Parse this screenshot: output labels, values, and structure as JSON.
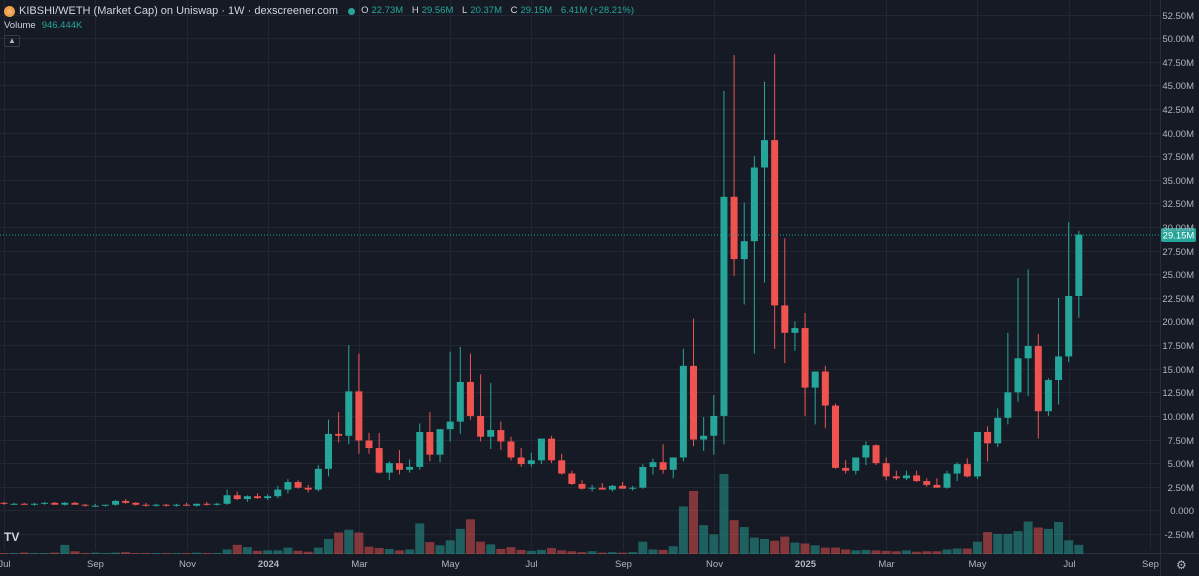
{
  "header": {
    "title": "KIBSHI/WETH (Market Cap) on Uniswap · 1W · dexscreener.com",
    "ohlc": [
      {
        "k": "O",
        "v": "22.73M"
      },
      {
        "k": "H",
        "v": "29.56M"
      },
      {
        "k": "L",
        "v": "20.37M"
      },
      {
        "k": "C",
        "v": "29.15M"
      },
      {
        "k": "",
        "v": "6.41M (+28.21%)"
      }
    ],
    "volume_label": "Volume",
    "volume_value": "946.444K",
    "collapse_icon": "chevron-up-icon"
  },
  "colors": {
    "background": "#161a25",
    "up": "#26a69a",
    "down": "#ef5350",
    "grid": "#232733",
    "text": "#b2b5be"
  },
  "chart_data": {
    "type": "candlestick",
    "interval": "1W",
    "current_price_label": "29.15M",
    "current_price": 29.15,
    "y_unit": "M",
    "ylim": [
      -4,
      53
    ],
    "y_ticks": [
      52.5,
      50,
      47.5,
      45,
      42.5,
      40,
      37.5,
      35,
      32.5,
      30,
      27.5,
      25,
      22.5,
      20,
      17.5,
      15,
      12.5,
      10,
      7.5,
      5,
      2.5,
      0,
      -2.5
    ],
    "y_tick_labels": [
      "52.50M",
      "50.00M",
      "47.50M",
      "45.00M",
      "42.50M",
      "40.00M",
      "37.50M",
      "35.00M",
      "32.50M",
      "30.00M",
      "27.50M",
      "25.00M",
      "22.50M",
      "20.00M",
      "17.50M",
      "15.00M",
      "12.50M",
      "10.00M",
      "7.50M",
      "5.00M",
      "2.50M",
      "0.000",
      "-2.50M"
    ],
    "x_tick_labels": [
      {
        "label": "Jul",
        "week": 0
      },
      {
        "label": "Sep",
        "week": 9
      },
      {
        "label": "Nov",
        "week": 18
      },
      {
        "label": "2024",
        "week": 26
      },
      {
        "label": "Mar",
        "week": 35
      },
      {
        "label": "May",
        "week": 44
      },
      {
        "label": "Jul",
        "week": 52
      },
      {
        "label": "Sep",
        "week": 61
      },
      {
        "label": "Nov",
        "week": 70
      },
      {
        "label": "2025",
        "week": 79
      },
      {
        "label": "Mar",
        "week": 87
      },
      {
        "label": "May",
        "week": 96
      },
      {
        "label": "Jul",
        "week": 105
      },
      {
        "label": "Sep",
        "week": 113
      }
    ],
    "candles": [
      [
        0.8,
        0.9,
        0.6,
        0.7,
        0.2
      ],
      [
        0.7,
        0.8,
        0.6,
        0.7,
        0.2
      ],
      [
        0.7,
        0.8,
        0.6,
        0.6,
        0.3
      ],
      [
        0.6,
        0.8,
        0.5,
        0.7,
        0.2
      ],
      [
        0.7,
        0.9,
        0.6,
        0.8,
        0.2
      ],
      [
        0.8,
        0.9,
        0.6,
        0.6,
        0.3
      ],
      [
        0.6,
        0.9,
        0.5,
        0.8,
        2.0
      ],
      [
        0.8,
        0.9,
        0.6,
        0.6,
        0.6
      ],
      [
        0.6,
        0.7,
        0.4,
        0.5,
        0.2
      ],
      [
        0.5,
        0.7,
        0.4,
        0.5,
        0.3
      ],
      [
        0.5,
        0.6,
        0.4,
        0.6,
        0.2
      ],
      [
        0.6,
        1.1,
        0.5,
        1.0,
        0.3
      ],
      [
        1.0,
        1.2,
        0.7,
        0.8,
        0.4
      ],
      [
        0.8,
        0.9,
        0.5,
        0.6,
        0.2
      ],
      [
        0.6,
        0.8,
        0.4,
        0.5,
        0.2
      ],
      [
        0.5,
        0.7,
        0.4,
        0.6,
        0.2
      ],
      [
        0.6,
        0.7,
        0.4,
        0.5,
        0.2
      ],
      [
        0.5,
        0.7,
        0.4,
        0.6,
        0.2
      ],
      [
        0.6,
        0.8,
        0.5,
        0.5,
        0.2
      ],
      [
        0.5,
        0.7,
        0.4,
        0.7,
        0.3
      ],
      [
        0.7,
        0.9,
        0.5,
        0.6,
        0.2
      ],
      [
        0.6,
        0.8,
        0.5,
        0.7,
        0.2
      ],
      [
        0.7,
        2.2,
        0.6,
        1.6,
        1.0
      ],
      [
        1.6,
        2.0,
        1.1,
        1.2,
        2.0
      ],
      [
        1.2,
        1.6,
        0.9,
        1.5,
        1.5
      ],
      [
        1.5,
        1.8,
        1.2,
        1.3,
        0.7
      ],
      [
        1.3,
        1.7,
        1.1,
        1.5,
        0.8
      ],
      [
        1.5,
        2.6,
        1.3,
        2.2,
        0.8
      ],
      [
        2.2,
        3.3,
        1.8,
        3.0,
        1.4
      ],
      [
        3.0,
        3.2,
        2.3,
        2.4,
        0.7
      ],
      [
        2.4,
        2.7,
        1.9,
        2.2,
        0.5
      ],
      [
        2.2,
        4.8,
        2.0,
        4.4,
        1.4
      ],
      [
        4.4,
        9.6,
        3.6,
        8.1,
        3.3
      ],
      [
        8.1,
        10.4,
        7.2,
        7.9,
        4.7
      ],
      [
        7.9,
        17.5,
        7.0,
        12.6,
        5.3
      ],
      [
        12.6,
        16.6,
        6.0,
        7.4,
        4.7
      ],
      [
        7.4,
        8.2,
        6.0,
        6.6,
        1.6
      ],
      [
        6.6,
        8.2,
        3.9,
        4.0,
        1.3
      ],
      [
        4.0,
        5.2,
        3.2,
        5.0,
        1.1
      ],
      [
        5.0,
        6.4,
        3.8,
        4.3,
        0.8
      ],
      [
        4.3,
        5.4,
        4.0,
        4.6,
        1.0
      ],
      [
        4.6,
        9.2,
        4.3,
        8.3,
        6.7
      ],
      [
        8.3,
        10.4,
        5.2,
        5.9,
        2.6
      ],
      [
        5.9,
        8.3,
        5.1,
        8.6,
        1.9
      ],
      [
        8.6,
        16.8,
        7.3,
        9.4,
        3.0
      ],
      [
        9.4,
        17.3,
        8.1,
        13.6,
        5.5
      ],
      [
        13.6,
        16.6,
        9.6,
        10.0,
        7.6
      ],
      [
        10.0,
        14.4,
        7.3,
        7.8,
        2.7
      ],
      [
        7.8,
        13.5,
        6.5,
        8.5,
        2.1
      ],
      [
        8.5,
        9.4,
        6.4,
        7.3,
        1.1
      ],
      [
        7.3,
        7.8,
        5.3,
        5.6,
        1.5
      ],
      [
        5.6,
        6.6,
        4.6,
        4.9,
        0.9
      ],
      [
        4.9,
        6.1,
        4.6,
        5.3,
        0.7
      ],
      [
        5.3,
        7.5,
        4.9,
        7.6,
        0.9
      ],
      [
        7.6,
        7.9,
        5.0,
        5.3,
        1.3
      ],
      [
        5.3,
        6.0,
        3.8,
        3.9,
        0.8
      ],
      [
        3.9,
        4.2,
        2.7,
        2.8,
        0.6
      ],
      [
        2.8,
        3.2,
        2.2,
        2.3,
        0.4
      ],
      [
        2.3,
        2.7,
        2.0,
        2.4,
        0.6
      ],
      [
        2.4,
        2.9,
        2.2,
        2.2,
        0.3
      ],
      [
        2.2,
        2.7,
        2.0,
        2.6,
        0.4
      ],
      [
        2.6,
        3.0,
        2.3,
        2.3,
        0.3
      ],
      [
        2.3,
        2.6,
        2.1,
        2.4,
        0.4
      ],
      [
        2.4,
        4.9,
        2.3,
        4.6,
        2.7
      ],
      [
        4.6,
        5.5,
        3.8,
        5.1,
        1.0
      ],
      [
        5.1,
        7.0,
        3.9,
        4.3,
        0.9
      ],
      [
        4.3,
        5.6,
        3.4,
        5.6,
        1.7
      ],
      [
        5.6,
        17.1,
        5.2,
        15.3,
        10.4
      ],
      [
        15.3,
        20.3,
        6.8,
        7.5,
        13.8
      ],
      [
        7.5,
        9.9,
        6.3,
        7.9,
        6.3
      ],
      [
        7.9,
        12.2,
        5.9,
        10.0,
        4.3
      ],
      [
        10.0,
        44.4,
        7.0,
        33.2,
        17.5
      ],
      [
        33.2,
        48.2,
        24.8,
        26.6,
        7.4
      ],
      [
        26.6,
        32.6,
        21.8,
        28.5,
        5.9
      ],
      [
        28.5,
        37.5,
        16.6,
        36.3,
        3.6
      ],
      [
        36.3,
        45.4,
        24.1,
        39.2,
        3.3
      ],
      [
        39.2,
        48.3,
        17.1,
        21.7,
        2.9
      ],
      [
        21.7,
        28.8,
        15.6,
        18.8,
        3.8
      ],
      [
        18.8,
        20.0,
        16.9,
        19.3,
        2.5
      ],
      [
        19.3,
        20.9,
        10.0,
        13.0,
        2.3
      ],
      [
        13.0,
        14.6,
        9.1,
        14.7,
        1.9
      ],
      [
        14.7,
        15.3,
        8.7,
        11.1,
        1.4
      ],
      [
        11.1,
        11.3,
        4.4,
        4.5,
        1.4
      ],
      [
        4.5,
        5.3,
        3.9,
        4.2,
        1.0
      ],
      [
        4.2,
        5.5,
        3.8,
        5.6,
        0.8
      ],
      [
        5.6,
        7.3,
        4.8,
        6.9,
        0.9
      ],
      [
        6.9,
        7.0,
        4.8,
        5.0,
        0.8
      ],
      [
        5.0,
        5.6,
        3.2,
        3.6,
        0.7
      ],
      [
        3.6,
        4.2,
        3.2,
        3.4,
        0.6
      ],
      [
        3.4,
        4.2,
        3.2,
        3.7,
        0.8
      ],
      [
        3.7,
        4.2,
        3.0,
        3.1,
        0.5
      ],
      [
        3.1,
        3.4,
        2.5,
        2.7,
        0.6
      ],
      [
        2.7,
        3.4,
        2.4,
        2.4,
        0.6
      ],
      [
        2.4,
        4.2,
        2.3,
        3.9,
        1.0
      ],
      [
        3.9,
        5.1,
        3.1,
        4.9,
        1.2
      ],
      [
        4.9,
        5.5,
        3.5,
        3.6,
        1.2
      ],
      [
        3.6,
        8.2,
        3.3,
        8.3,
        2.7
      ],
      [
        8.3,
        8.9,
        5.2,
        7.1,
        4.8
      ],
      [
        7.1,
        10.8,
        6.7,
        9.8,
        4.4
      ],
      [
        9.8,
        18.8,
        9.1,
        12.5,
        4.4
      ],
      [
        12.5,
        24.6,
        11.5,
        16.1,
        5.0
      ],
      [
        16.1,
        25.5,
        12.1,
        17.4,
        7.1
      ],
      [
        17.4,
        18.7,
        7.6,
        10.5,
        5.8
      ],
      [
        10.5,
        14.0,
        10.0,
        13.8,
        5.5
      ],
      [
        13.8,
        22.5,
        11.2,
        16.3,
        7.0
      ],
      [
        16.3,
        30.5,
        15.7,
        22.7,
        3.0
      ],
      [
        22.7,
        29.6,
        20.4,
        29.2,
        2.0
      ]
    ]
  }
}
